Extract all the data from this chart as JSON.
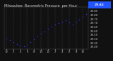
{
  "title": "Milwaukee  Barometric Pressure  per Hour",
  "bg_color": "#111111",
  "plot_bg": "#111111",
  "dot_color": "#3333ff",
  "highlight_color": "#2255ff",
  "hours": [
    0,
    1,
    2,
    3,
    4,
    5,
    6,
    7,
    8,
    9,
    10,
    11,
    12,
    13,
    14,
    15,
    16,
    17,
    18,
    19,
    20,
    21,
    22,
    23
  ],
  "pressure": [
    29.51,
    29.49,
    29.46,
    29.44,
    29.42,
    29.41,
    29.43,
    29.46,
    29.5,
    29.54,
    29.57,
    29.6,
    29.63,
    29.66,
    29.68,
    29.7,
    29.72,
    29.74,
    29.71,
    29.68,
    29.72,
    29.75,
    29.78,
    29.82
  ],
  "ylim_min": 29.38,
  "ylim_max": 29.9,
  "current_value": 29.82,
  "title_fontsize": 3.5,
  "tick_fontsize": 2.8,
  "label_color": "#cccccc",
  "grid_color": "#444444"
}
